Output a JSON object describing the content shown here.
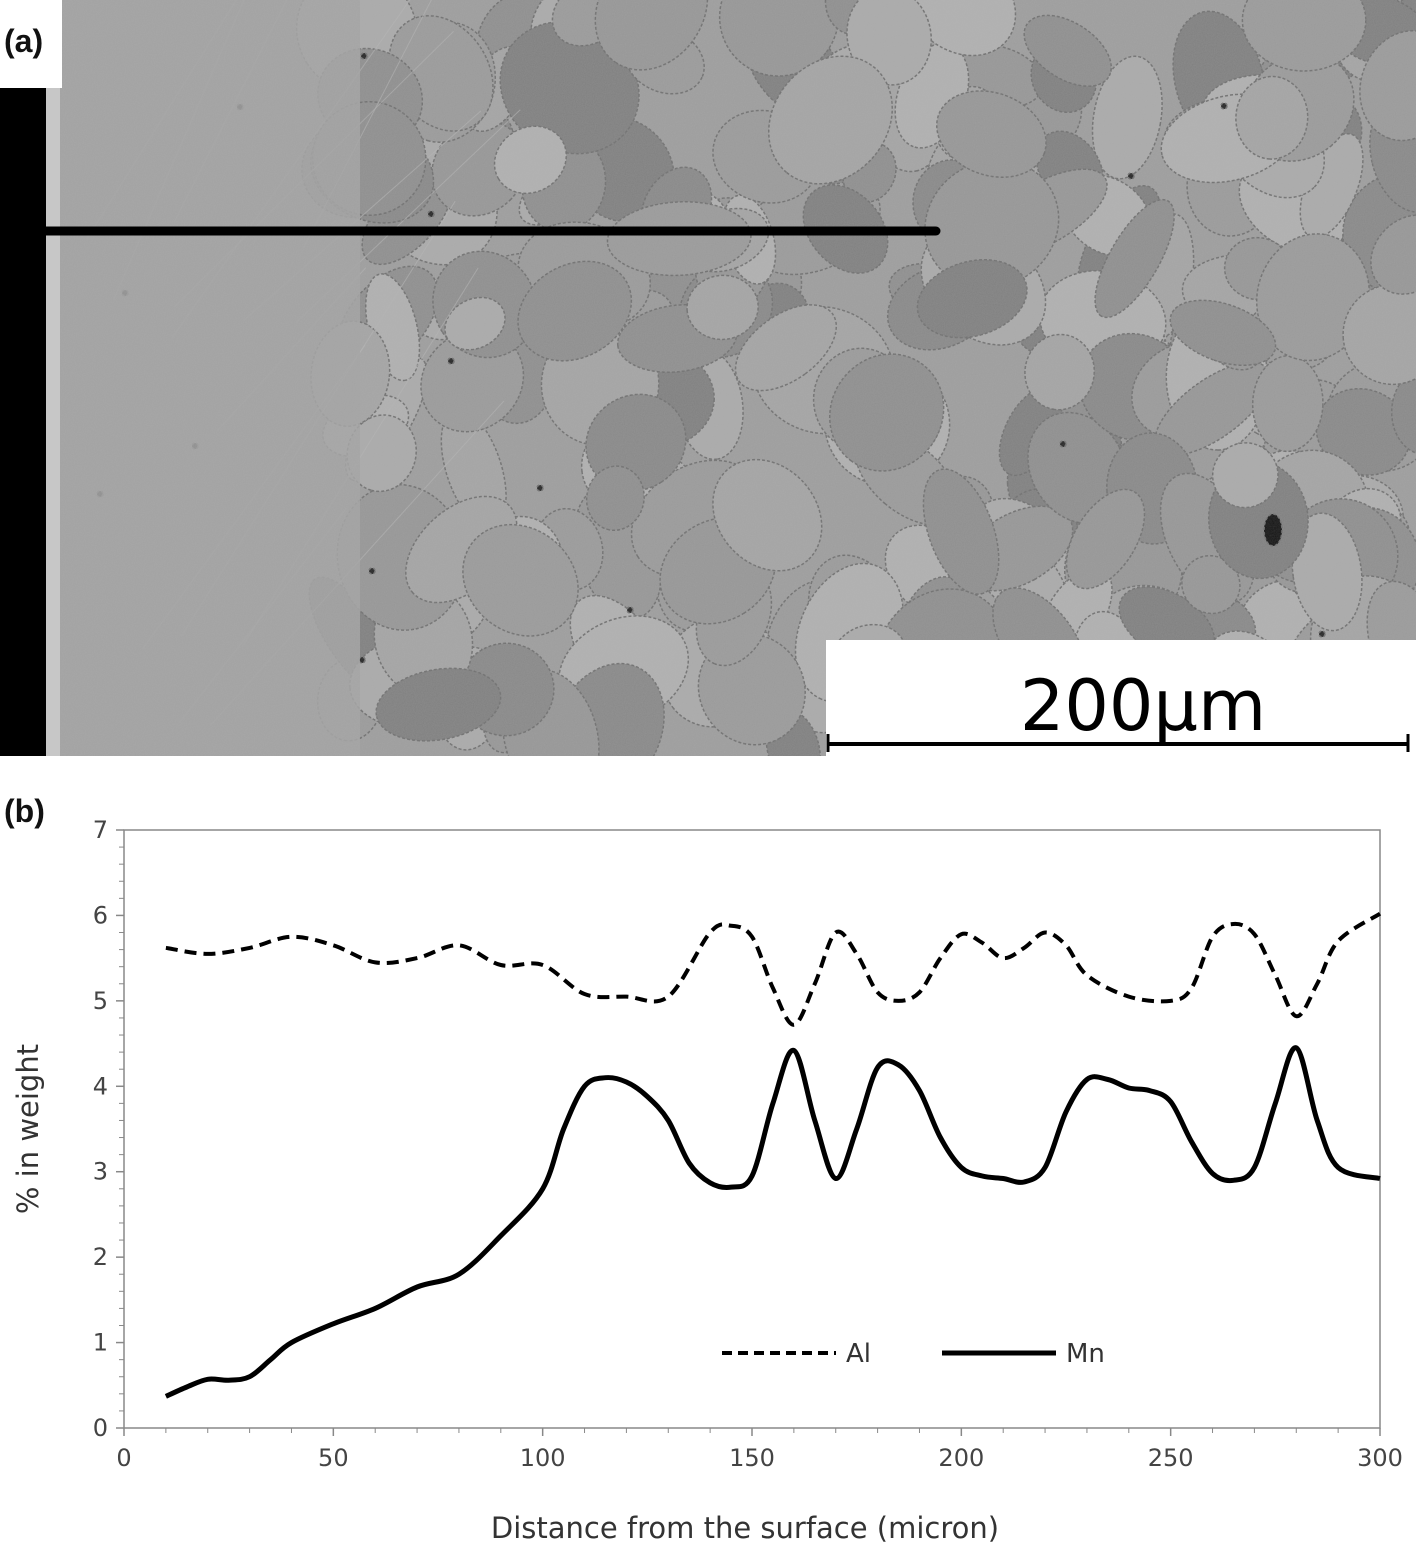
{
  "panel_a": {
    "label": "(a)",
    "scale_bar_label": "200µm"
  },
  "panel_b": {
    "label": "(b)"
  },
  "chart_data": {
    "type": "line",
    "title": "",
    "xlabel": "Distance from the surface (micron)",
    "ylabel": "% in weight",
    "xlim": [
      0,
      300
    ],
    "ylim": [
      0,
      7
    ],
    "xticks": [
      0,
      50,
      100,
      150,
      200,
      250,
      300
    ],
    "yticks": [
      0,
      1,
      2,
      3,
      4,
      5,
      6,
      7
    ],
    "grid": false,
    "legend_position": "center-right",
    "series": [
      {
        "name": "Al",
        "style": "dashed",
        "color": "#000000",
        "x": [
          10,
          20,
          30,
          40,
          50,
          60,
          70,
          80,
          90,
          100,
          110,
          120,
          130,
          140,
          145,
          150,
          155,
          160,
          165,
          170,
          175,
          180,
          185,
          190,
          195,
          200,
          205,
          210,
          215,
          220,
          225,
          230,
          240,
          250,
          255,
          260,
          265,
          270,
          275,
          280,
          285,
          290,
          300
        ],
        "y": [
          5.62,
          5.55,
          5.62,
          5.75,
          5.65,
          5.45,
          5.5,
          5.65,
          5.42,
          5.42,
          5.08,
          5.05,
          5.05,
          5.8,
          5.88,
          5.75,
          5.15,
          4.72,
          5.2,
          5.8,
          5.55,
          5.1,
          5.0,
          5.1,
          5.5,
          5.78,
          5.68,
          5.5,
          5.62,
          5.8,
          5.65,
          5.3,
          5.05,
          5.0,
          5.15,
          5.75,
          5.9,
          5.78,
          5.3,
          4.82,
          5.2,
          5.7,
          6.02
        ]
      },
      {
        "name": "Mn",
        "style": "solid",
        "color": "#000000",
        "x": [
          10,
          15,
          20,
          25,
          30,
          35,
          40,
          50,
          60,
          70,
          80,
          90,
          100,
          105,
          110,
          115,
          120,
          125,
          130,
          135,
          140,
          145,
          150,
          155,
          160,
          165,
          170,
          175,
          180,
          185,
          190,
          195,
          200,
          205,
          210,
          215,
          220,
          225,
          230,
          235,
          240,
          245,
          250,
          255,
          260,
          265,
          270,
          275,
          280,
          285,
          290,
          300
        ],
        "y": [
          0.37,
          0.48,
          0.57,
          0.56,
          0.6,
          0.8,
          1.0,
          1.22,
          1.4,
          1.65,
          1.8,
          2.25,
          2.8,
          3.5,
          4.0,
          4.1,
          4.05,
          3.88,
          3.6,
          3.1,
          2.87,
          2.82,
          2.95,
          3.8,
          4.42,
          3.6,
          2.92,
          3.5,
          4.22,
          4.25,
          3.95,
          3.4,
          3.05,
          2.95,
          2.92,
          2.88,
          3.05,
          3.7,
          4.08,
          4.08,
          3.98,
          3.95,
          3.82,
          3.35,
          2.98,
          2.9,
          3.05,
          3.8,
          4.45,
          3.6,
          3.05,
          2.92
        ]
      }
    ]
  }
}
